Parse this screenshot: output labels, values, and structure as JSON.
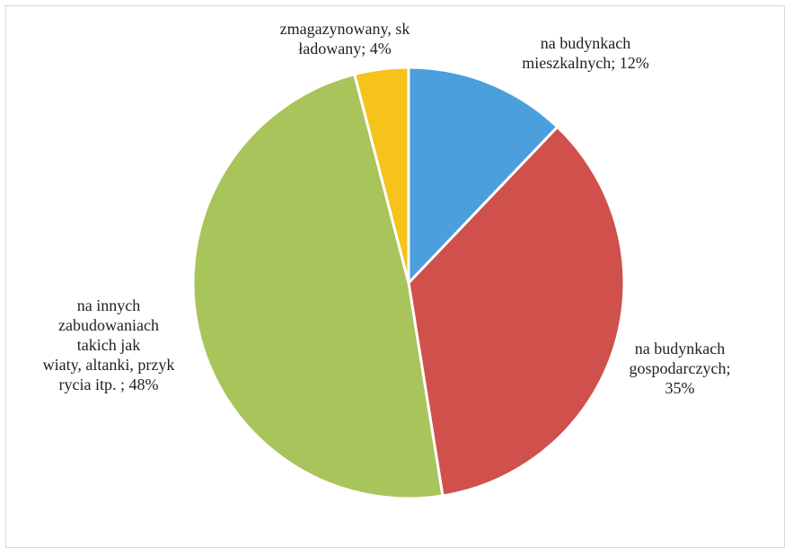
{
  "chart_data": {
    "type": "pie",
    "title": "",
    "slices": [
      {
        "value": 12,
        "color": "#4a9fdc",
        "label_lines": [
          "na budynkach",
          "mieszkalnych; 12%"
        ]
      },
      {
        "value": 35,
        "color": "#d0504c",
        "label_lines": [
          "na budynkach",
          "gospodarczych;",
          "35%"
        ]
      },
      {
        "value": 48,
        "color": "#a8c45a",
        "label_lines": [
          "na innych",
          "zabudowaniach",
          "takich jak",
          "wiaty, altanki, przyk",
          "rycia itp. ; 48%"
        ]
      },
      {
        "value": 4,
        "color": "#f6c21c",
        "label_lines": [
          "zmagazynowany, sk",
          "ładowany; 4%"
        ]
      }
    ],
    "legend": "none",
    "grid": false
  }
}
